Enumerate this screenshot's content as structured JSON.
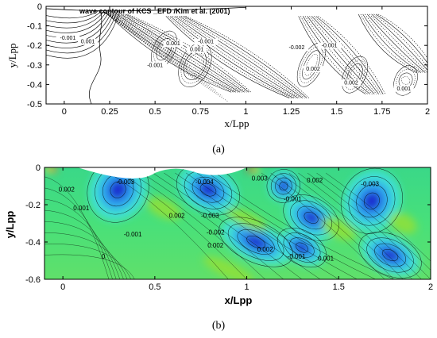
{
  "chart_data": [
    {
      "type": "contour",
      "panel_label": "(a)",
      "title": "wave contour of KCS _EFD /Kim et al. (2001)",
      "xlabel": "x/Lpp",
      "ylabel": "y/Lpp",
      "xlim": [
        -0.1,
        2.0
      ],
      "ylim": [
        -0.5,
        0.0
      ],
      "x_ticks": [
        0,
        0.25,
        0.5,
        0.75,
        1,
        1.25,
        1.5,
        1.75,
        2
      ],
      "x_tick_labels": [
        "0",
        "0.25",
        "0.5",
        "0.75",
        "1",
        "1.25",
        "1.5",
        "1.75",
        "2"
      ],
      "y_ticks": [
        0,
        -0.1,
        -0.2,
        -0.3,
        -0.4,
        -0.5
      ],
      "y_tick_labels": [
        "0",
        "-0.1",
        "-0.2",
        "-0.3",
        "-0.4",
        "-0.5"
      ],
      "contour_labels": [
        {
          "text": "-0.001",
          "x": 0.02,
          "y": -0.17
        },
        {
          "text": "0.001",
          "x": 0.13,
          "y": -0.19
        },
        {
          "text": "-0.001",
          "x": 0.5,
          "y": -0.31
        },
        {
          "text": "0.001",
          "x": 0.6,
          "y": -0.2
        },
        {
          "text": "0.001",
          "x": 0.73,
          "y": -0.23
        },
        {
          "text": "-0.001",
          "x": 0.78,
          "y": -0.19
        },
        {
          "text": "-0.002",
          "x": 1.28,
          "y": -0.22
        },
        {
          "text": "0.002",
          "x": 1.37,
          "y": -0.33
        },
        {
          "text": "-0.001",
          "x": 1.46,
          "y": -0.21
        },
        {
          "text": "0.002",
          "x": 1.58,
          "y": -0.4
        },
        {
          "text": "0.001",
          "x": 1.87,
          "y": -0.43
        }
      ],
      "wave_crests": [
        {
          "x0": 0.3,
          "x1": 0.98,
          "y0": -0.04,
          "y1": -0.44
        },
        {
          "x0": 0.62,
          "x1": 1.3,
          "y0": -0.05,
          "y1": -0.47
        },
        {
          "x0": 1.35,
          "x1": 1.72,
          "y0": -0.05,
          "y1": -0.45
        },
        {
          "x0": 1.68,
          "x1": 2.0,
          "y0": -0.04,
          "y1": -0.34
        }
      ]
    },
    {
      "type": "contour",
      "panel_label": "(b)",
      "title": "",
      "xlabel": "x/Lpp",
      "ylabel": "y/Lpp",
      "xlim": [
        -0.1,
        2.0
      ],
      "ylim": [
        -0.6,
        0.0
      ],
      "x_ticks": [
        0,
        0.5,
        1,
        1.5,
        2
      ],
      "x_tick_labels": [
        "0",
        "0.5",
        "1",
        "1.5",
        "2"
      ],
      "y_ticks": [
        0,
        -0.2,
        -0.4,
        -0.6
      ],
      "y_tick_labels": [
        "0",
        "-0.2",
        "-0.4",
        "-0.6"
      ],
      "colormap": [
        "#1a2fd0",
        "#2fa0f0",
        "#40e0e0",
        "#3ce07a",
        "#8ee03a",
        "#f0e040",
        "#f08020",
        "#d02020"
      ],
      "contour_labels": [
        {
          "text": "0.002",
          "x": 0.02,
          "y": -0.13
        },
        {
          "text": "0.001",
          "x": 0.1,
          "y": -0.23
        },
        {
          "text": "-0.003",
          "x": 0.34,
          "y": -0.09
        },
        {
          "text": "-0.004",
          "x": 0.77,
          "y": -0.09
        },
        {
          "text": "0.002",
          "x": 0.62,
          "y": -0.27
        },
        {
          "text": "-0.003",
          "x": 0.8,
          "y": -0.27
        },
        {
          "text": "-0.001",
          "x": 0.38,
          "y": -0.37
        },
        {
          "text": "-0.002",
          "x": 0.83,
          "y": -0.36
        },
        {
          "text": "0.002",
          "x": 0.83,
          "y": -0.43
        },
        {
          "text": "0",
          "x": 0.22,
          "y": -0.49
        },
        {
          "text": "0.003",
          "x": 1.07,
          "y": -0.07
        },
        {
          "text": "-0.001",
          "x": 1.25,
          "y": -0.18
        },
        {
          "text": "0.002",
          "x": 1.37,
          "y": -0.08
        },
        {
          "text": "-0.003",
          "x": 1.67,
          "y": -0.1
        },
        {
          "text": "0.002",
          "x": 1.1,
          "y": -0.45
        },
        {
          "text": "-0.001",
          "x": 1.27,
          "y": -0.49
        },
        {
          "text": "0.001",
          "x": 1.43,
          "y": -0.5
        }
      ],
      "blue_troughs": [
        {
          "x": 0.3,
          "y": -0.12,
          "rx": 0.09,
          "ry": 0.1,
          "rot": 30
        },
        {
          "x": 0.79,
          "y": -0.12,
          "rx": 0.1,
          "ry": 0.07,
          "rot": 25
        },
        {
          "x": 1.05,
          "y": -0.4,
          "rx": 0.12,
          "ry": 0.06,
          "rot": 25
        },
        {
          "x": 1.35,
          "y": -0.27,
          "rx": 0.09,
          "ry": 0.06,
          "rot": 30
        },
        {
          "x": 1.3,
          "y": -0.43,
          "rx": 0.08,
          "ry": 0.05,
          "rot": 30
        },
        {
          "x": 1.68,
          "y": -0.18,
          "rx": 0.09,
          "ry": 0.1,
          "rot": 30
        },
        {
          "x": 1.78,
          "y": -0.47,
          "rx": 0.1,
          "ry": 0.06,
          "rot": 25
        },
        {
          "x": 1.2,
          "y": -0.1,
          "rx": 0.05,
          "ry": 0.05,
          "rot": 30
        }
      ]
    }
  ]
}
